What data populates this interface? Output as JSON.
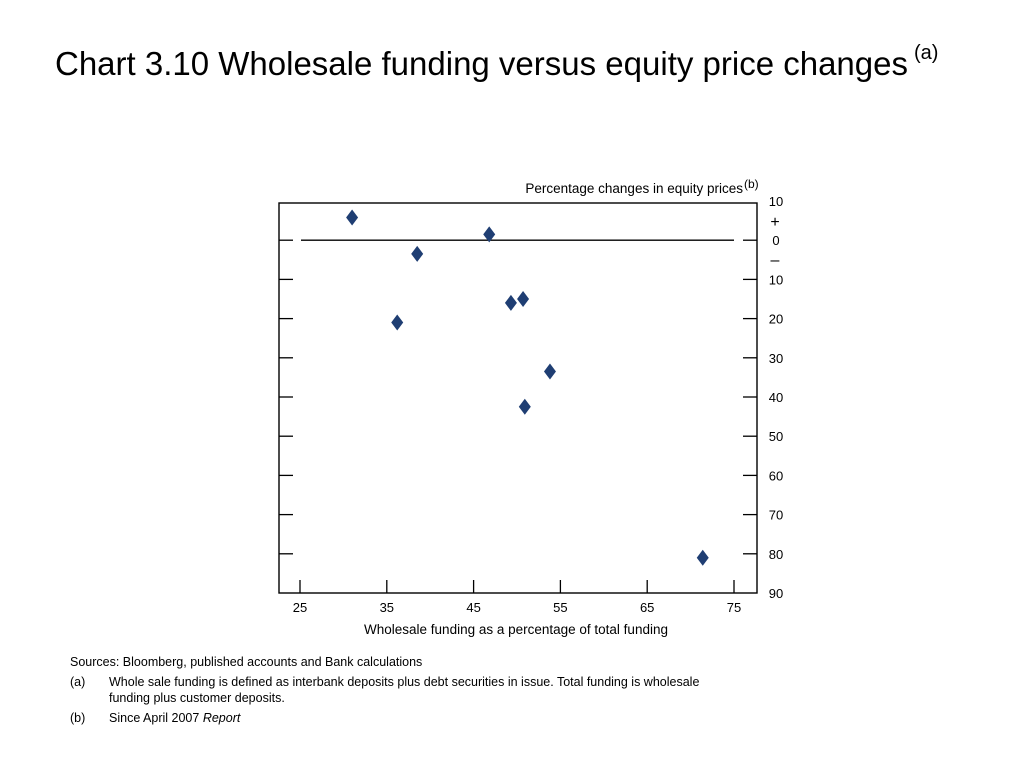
{
  "title": {
    "text": "Chart 3.10  Wholesale funding versus equity price changes",
    "superscript": "(a)"
  },
  "chart_data": {
    "type": "scatter",
    "ylabel": "Percentage changes in equity prices",
    "ylabel_note": "(b)",
    "xlabel": "Wholesale funding as a percentage of total funding",
    "xlim": [
      25,
      75
    ],
    "ylim": [
      -90,
      10
    ],
    "x_ticks": [
      25,
      35,
      45,
      55,
      65,
      75
    ],
    "y_ticks": [
      10,
      0,
      -10,
      -20,
      -30,
      -40,
      -50,
      -60,
      -70,
      -80,
      -90
    ],
    "y_tick_labels": [
      "10",
      "0",
      "10",
      "20",
      "30",
      "40",
      "50",
      "60",
      "70",
      "80",
      "90"
    ],
    "sign_plus": "+",
    "sign_minus": "–",
    "zero_line": true,
    "marker": "diamond",
    "marker_color": "#1f3e73",
    "points": [
      {
        "x": 31.0,
        "y": 5.8
      },
      {
        "x": 38.5,
        "y": -3.5
      },
      {
        "x": 36.2,
        "y": -21.0
      },
      {
        "x": 46.8,
        "y": 1.5
      },
      {
        "x": 49.3,
        "y": -16.0
      },
      {
        "x": 50.7,
        "y": -15.0
      },
      {
        "x": 53.8,
        "y": -33.5
      },
      {
        "x": 50.9,
        "y": -42.5
      },
      {
        "x": 71.4,
        "y": -81.0
      }
    ]
  },
  "notes": {
    "sources": "Sources: Bloomberg, published accounts and Bank calculations",
    "a_mark": "(a)",
    "a_text": "Whole sale funding is defined as interbank deposits plus debt securities in issue.  Total funding is wholesale funding plus customer deposits.",
    "b_mark": "(b)",
    "b_text": "Since April 2007",
    "b_italic": "Report"
  }
}
